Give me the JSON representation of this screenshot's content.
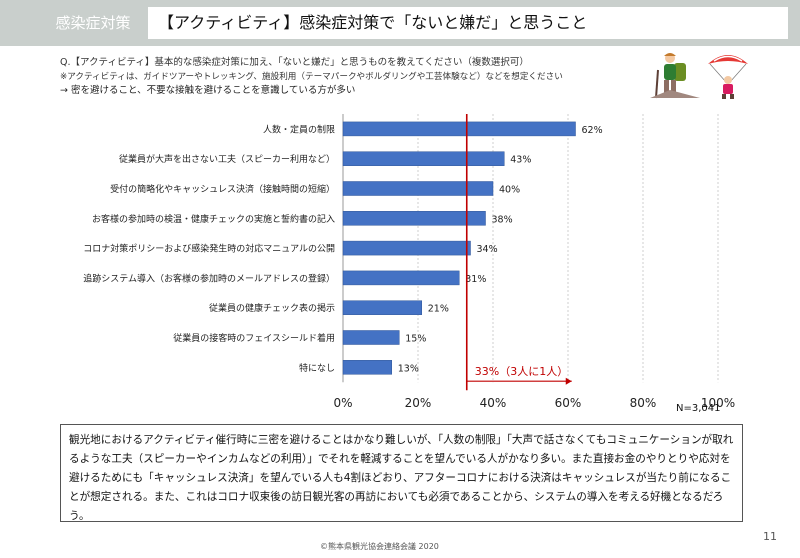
{
  "header": {
    "tag": "感染症対策",
    "title": "【アクティビティ】感染症対策で「ないと嫌だ」と思うこと"
  },
  "question": {
    "line1": "Q.【アクティビティ】基本的な感染症対策に加え、「ないと嫌だ」と思うものを教えてください（複数選択可）",
    "line2": "※アクティビティは、ガイドツアーやトレッキング、施設利用（テーマパークやボルダリングや工芸体験など）などを想定ください",
    "line3": "→ 密を避けること、不要な接触を避けることを意識している方が多い"
  },
  "icons": {
    "hiker": "hiker-icon",
    "paraglider": "paraglider-icon"
  },
  "chart_data": {
    "type": "bar",
    "orientation": "horizontal",
    "categories": [
      "人数・定員の制限",
      "従業員が大声を出さない工夫（スピーカー利用など）",
      "受付の簡略化やキャッシュレス決済（接触時間の短縮）",
      "お客様の参加時の検温・健康チェックの実施と誓約書の記入",
      "コロナ対策ポリシーおよび感染発生時の対応マニュアルの公開",
      "追跡システム導入（お客様の参加時のメールアドレスの登録）",
      "従業員の健康チェック表の掲示",
      "従業員の接客時のフェイスシールド着用",
      "特になし"
    ],
    "values": [
      62,
      43,
      40,
      38,
      34,
      31,
      21,
      15,
      13
    ],
    "value_labels": [
      "62%",
      "43%",
      "40%",
      "38%",
      "34%",
      "31%",
      "21%",
      "15%",
      "13%"
    ],
    "xlim": [
      0,
      100
    ],
    "xticks": [
      "0%",
      "20%",
      "40%",
      "60%",
      "80%",
      "100%"
    ],
    "reference_line": {
      "value": 33,
      "label": "33%（3人に1人）",
      "color": "#c00000"
    },
    "bar_color": "#4472c4",
    "grid": "vertical-dotted",
    "n_label": "N=3,041"
  },
  "summary": "観光地におけるアクティビティ催行時に三密を避けることはかなり難しいが、「人数の制限」「大声で話さなくてもコミュニケーションが取れるような工夫（スピーカーやインカムなどの利用）」でそれを軽減することを望んでいる人がかなり多い。また直接お金のやりとりや応対を避けるためにも「キャッシュレス決済」を望んでいる人も4割ほどおり、アフターコロナにおける決済はキャッシュレスが当たり前になることが想定される。また、これはコロナ収束後の訪日観光客の再訪においても必須であることから、システムの導入を考える好機となるだろう。",
  "footer": {
    "page": "11",
    "copyright": "©熊本県観光協会連絡会議 2020"
  }
}
